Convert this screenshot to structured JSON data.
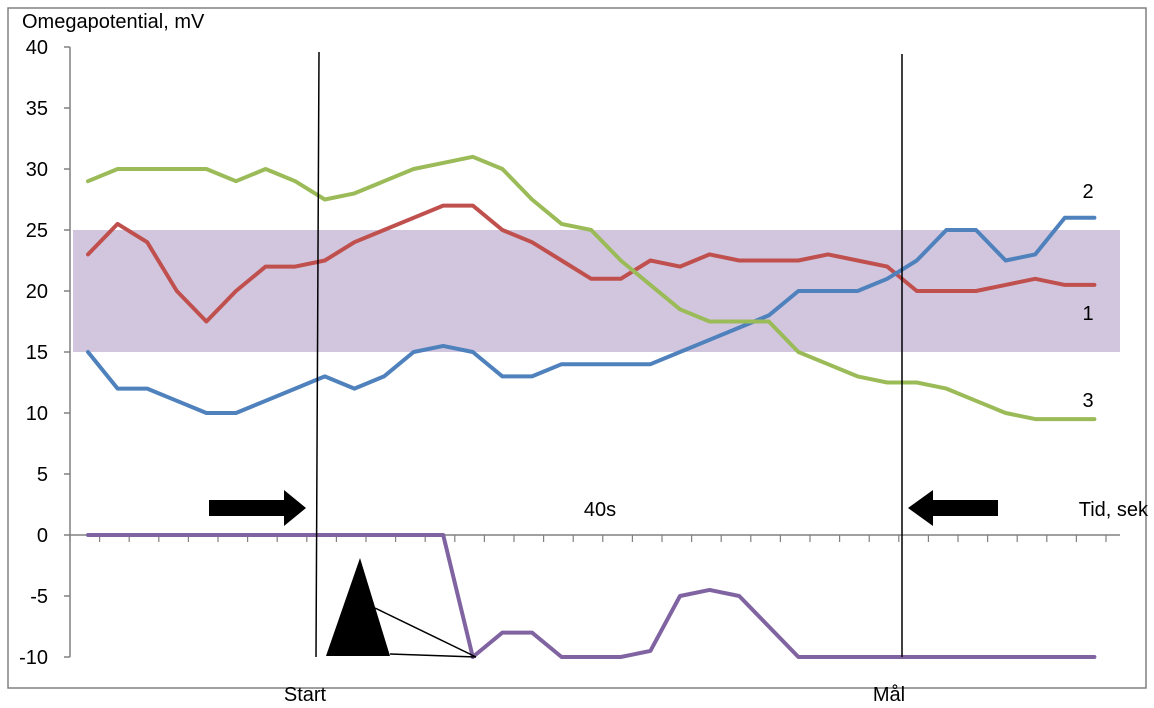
{
  "chart_data": {
    "type": "line",
    "ylabel": "Omegapotential, mV",
    "xlabel": "Tid, sek",
    "ylim": [
      -10,
      40
    ],
    "yticks": [
      -10,
      -5,
      0,
      5,
      10,
      15,
      20,
      25,
      30,
      35,
      40
    ],
    "x_points": 35,
    "band": {
      "from": 15,
      "to": 25,
      "color": "#ccc0da"
    },
    "series": [
      {
        "label": "1",
        "color": "#c0504d",
        "values": [
          23,
          25.5,
          24,
          20,
          17.5,
          20,
          22,
          22,
          22.5,
          24,
          25,
          26,
          27,
          27,
          25,
          24,
          22.5,
          21,
          21,
          22.5,
          22,
          23,
          22.5,
          22.5,
          22.5,
          23,
          22.5,
          22,
          20,
          20,
          20,
          20.5,
          21,
          20.5,
          20.5
        ]
      },
      {
        "label": "2",
        "color": "#4f81bd",
        "values": [
          15,
          12,
          12,
          11,
          10,
          10,
          11,
          12,
          13,
          12,
          13,
          15,
          15.5,
          15,
          13,
          13,
          14,
          14,
          14,
          14,
          15,
          16,
          17,
          18,
          20,
          20,
          20,
          21,
          22.5,
          25,
          25,
          22.5,
          23,
          26,
          26
        ]
      },
      {
        "label": "3",
        "color": "#9bbb59",
        "values": [
          29,
          30,
          30,
          30,
          30,
          29,
          30,
          29,
          27.5,
          28,
          29,
          30,
          30.5,
          31,
          30,
          27.5,
          25.5,
          25,
          22.5,
          20.5,
          18.5,
          17.5,
          17.5,
          17.5,
          15,
          14,
          13,
          12.5,
          12.5,
          12,
          11,
          10,
          9.5,
          9.5,
          9.5
        ]
      },
      {
        "label": "",
        "color": "#8064a2",
        "values": [
          0,
          0,
          0,
          0,
          0,
          0,
          0,
          0,
          0,
          0,
          0,
          0,
          0,
          -10,
          -8,
          -8,
          -10,
          -10,
          -10,
          -9.5,
          -5,
          -4.5,
          -5,
          -7.5,
          -10,
          -10,
          -10,
          -10,
          -10,
          -10,
          -10,
          -10,
          -10,
          -10,
          -10
        ]
      }
    ],
    "annotations": {
      "start_label": "Start",
      "goal_label": "Mål",
      "duration_label": "40s"
    }
  }
}
